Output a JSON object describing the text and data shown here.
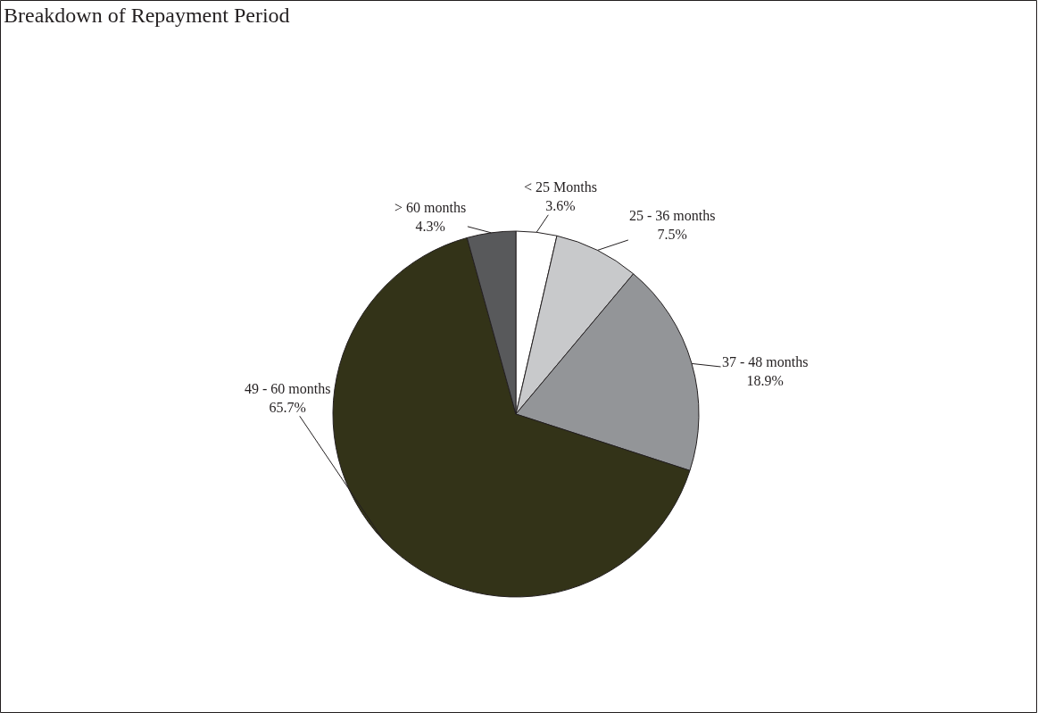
{
  "chart_data": {
    "type": "pie",
    "title": "Breakdown of Repayment Period",
    "categories": [
      "< 25 Months",
      "25 - 36 months",
      "37 - 48 months",
      "49 - 60 months",
      "> 60 months"
    ],
    "values": [
      3.6,
      7.5,
      18.9,
      65.7,
      4.3
    ],
    "value_labels": [
      "3.6%",
      "7.5%",
      "18.9%",
      "65.7%",
      "4.3%"
    ],
    "colors": [
      "#ffffff",
      "#c8c9cb",
      "#939598",
      "#333318",
      "#58595b"
    ],
    "legend": false
  }
}
